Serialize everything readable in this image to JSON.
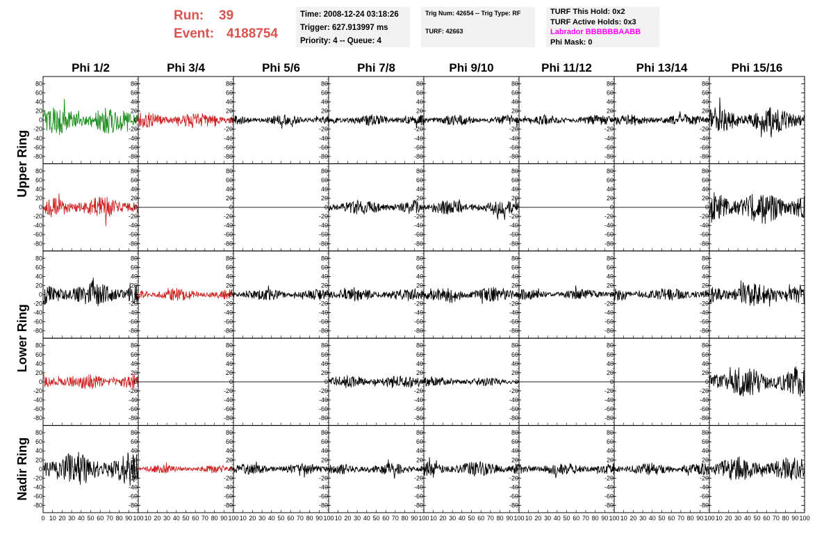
{
  "header": {
    "run_label": "Run:",
    "run_value": "39",
    "event_label": "Event:",
    "event_value": "4188754",
    "time": "Time: 2008-12-24 03:18:26",
    "trigger": "Trigger: 627.913997 ms",
    "priority": "Priority: 4 -- Queue: 4",
    "trig_num": "Trig Num: 42654 -- Trig Type: RF",
    "turf": "TURF: 42663",
    "turf_hold": "TURF This Hold: 0x2",
    "turf_active": "TURF Active Holds: 0x3",
    "labrador": "Labrador BBBBBBAABB",
    "phi_mask": "Phi Mask: 0"
  },
  "colors": {
    "red": "#cc2222",
    "green": "#1a8c1a",
    "black": "#000000",
    "magenta": "#ff00ff",
    "run_text": "#d9534f"
  },
  "chart_data": {
    "type": "line",
    "columns": [
      "Phi 1/2",
      "Phi 3/4",
      "Phi 5/6",
      "Phi 7/8",
      "Phi 9/10",
      "Phi 11/12",
      "Phi 13/14",
      "Phi 15/16"
    ],
    "row_groups": [
      "Upper Ring",
      "Lower Ring",
      "Nadir Ring"
    ],
    "ylim": [
      -90,
      90
    ],
    "yticks": [
      -80,
      -60,
      -40,
      -20,
      0,
      20,
      40,
      60,
      80
    ],
    "xlim": [
      0,
      100
    ],
    "xticks_first": [
      "0",
      "10",
      "20",
      "30",
      "40",
      "50",
      "60",
      "70",
      "80",
      "90",
      "100"
    ],
    "xticks_other": [
      "10",
      "20",
      "30",
      "40",
      "50",
      "60",
      "70",
      "80",
      "90",
      "100"
    ],
    "traces": [
      [
        {
          "c": "green",
          "a": 30,
          "f": 0
        },
        {
          "c": "red",
          "a": 18,
          "f": 0
        },
        {
          "c": "black",
          "a": 12,
          "f": 0
        },
        {
          "c": "black",
          "a": 13,
          "f": 0
        },
        {
          "c": "black",
          "a": 12,
          "f": 0
        },
        {
          "c": "black",
          "a": 11,
          "f": 0
        },
        {
          "c": "black",
          "a": 13,
          "f": 0
        },
        {
          "c": "black",
          "a": 30,
          "f": 0
        }
      ],
      [
        {
          "c": "red",
          "a": 25,
          "f": 0
        },
        {
          "c": "black",
          "a": 0,
          "f": 1
        },
        {
          "c": "black",
          "a": 0,
          "f": 1
        },
        {
          "c": "black",
          "a": 16,
          "f": 0
        },
        {
          "c": "black",
          "a": 16,
          "f": 0
        },
        {
          "c": "black",
          "a": 0,
          "f": 1
        },
        {
          "c": "black",
          "a": 0,
          "f": 1
        },
        {
          "c": "black",
          "a": 38,
          "f": 0
        }
      ],
      [
        {
          "c": "black",
          "a": 28,
          "f": 0
        },
        {
          "c": "red",
          "a": 14,
          "f": 0
        },
        {
          "c": "black",
          "a": 13,
          "f": 0
        },
        {
          "c": "black",
          "a": 15,
          "f": 0
        },
        {
          "c": "black",
          "a": 17,
          "f": 0
        },
        {
          "c": "black",
          "a": 12,
          "f": 0
        },
        {
          "c": "black",
          "a": 15,
          "f": 0
        },
        {
          "c": "black",
          "a": 25,
          "f": 0
        }
      ],
      [
        {
          "c": "red",
          "a": 18,
          "f": 0
        },
        {
          "c": "black",
          "a": 0,
          "f": 1
        },
        {
          "c": "black",
          "a": 0,
          "f": 1
        },
        {
          "c": "black",
          "a": 15,
          "f": 0
        },
        {
          "c": "black",
          "a": 10,
          "f": 0
        },
        {
          "c": "black",
          "a": 0,
          "f": 1
        },
        {
          "c": "black",
          "a": 0,
          "f": 1
        },
        {
          "c": "black",
          "a": 35,
          "f": 0
        }
      ],
      [
        {
          "c": "black",
          "a": 38,
          "f": 0
        },
        {
          "c": "red",
          "a": 9,
          "f": 0
        },
        {
          "c": "black",
          "a": 12,
          "f": 0
        },
        {
          "c": "black",
          "a": 13,
          "f": 0
        },
        {
          "c": "black",
          "a": 17,
          "f": 0
        },
        {
          "c": "black",
          "a": 14,
          "f": 0
        },
        {
          "c": "black",
          "a": 14,
          "f": 0
        },
        {
          "c": "black",
          "a": 28,
          "f": 0
        }
      ]
    ]
  }
}
